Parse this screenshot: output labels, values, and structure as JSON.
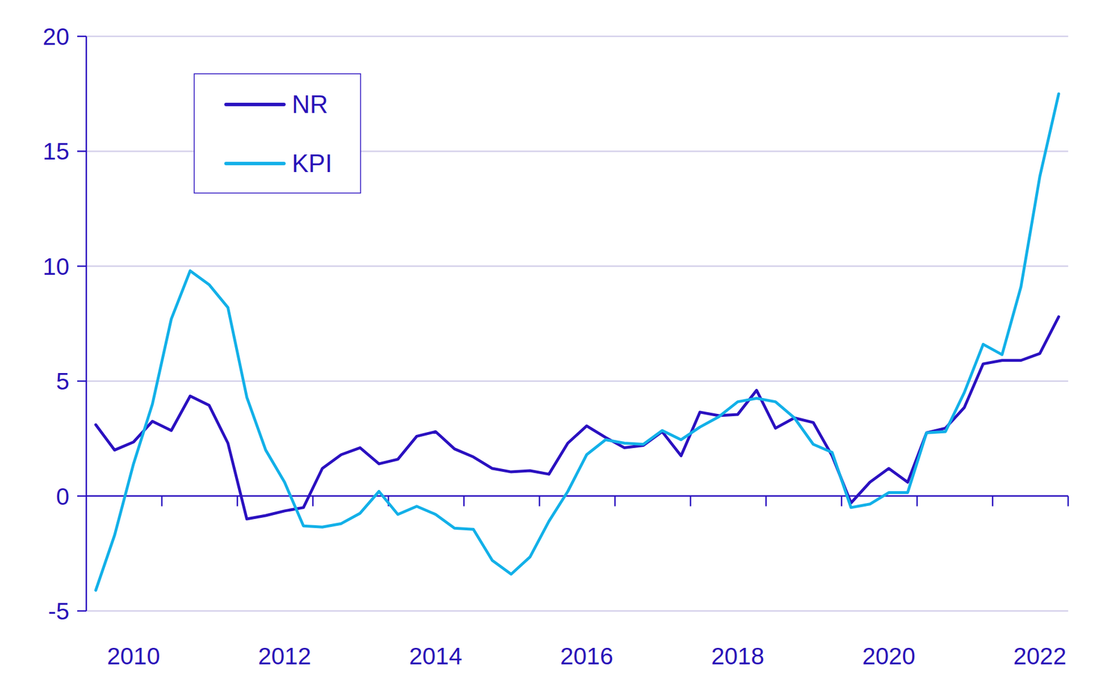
{
  "chart_data": {
    "type": "line",
    "categories": [
      null,
      null,
      "2010",
      null,
      null,
      null,
      null,
      null,
      null,
      null,
      "2012",
      null,
      null,
      null,
      null,
      null,
      null,
      null,
      "2014",
      null,
      null,
      null,
      null,
      null,
      null,
      null,
      "2016",
      null,
      null,
      null,
      null,
      null,
      null,
      null,
      "2018",
      null,
      null,
      null,
      null,
      null,
      null,
      null,
      "2020",
      null,
      null,
      null,
      null,
      null,
      null,
      null,
      "2022",
      null
    ],
    "series": [
      {
        "name": "NR",
        "color": "#2a10c0",
        "values": [
          3.1,
          2.0,
          2.35,
          3.25,
          2.85,
          4.35,
          3.95,
          2.3,
          -1.0,
          -0.85,
          -0.65,
          -0.5,
          1.2,
          1.8,
          2.1,
          1.4,
          1.6,
          2.6,
          2.8,
          2.05,
          1.7,
          1.2,
          1.05,
          1.1,
          0.95,
          2.3,
          3.05,
          2.55,
          2.1,
          2.2,
          2.8,
          1.75,
          3.65,
          3.5,
          3.55,
          4.6,
          2.95,
          3.4,
          3.2,
          1.75,
          -0.3,
          0.6,
          1.2,
          0.6,
          2.75,
          2.95,
          3.85,
          5.75,
          5.9,
          5.9,
          6.2,
          7.8
        ]
      },
      {
        "name": "KPI",
        "color": "#12b0e8",
        "values": [
          -4.1,
          -1.7,
          1.4,
          4.0,
          7.7,
          9.8,
          9.2,
          8.2,
          4.3,
          2.0,
          0.6,
          -1.3,
          -1.35,
          -1.2,
          -0.75,
          0.2,
          -0.8,
          -0.45,
          -0.8,
          -1.4,
          -1.45,
          -2.8,
          -3.4,
          -2.65,
          -1.1,
          0.2,
          1.8,
          2.45,
          2.3,
          2.25,
          2.85,
          2.45,
          3.0,
          3.45,
          4.1,
          4.25,
          4.1,
          3.4,
          2.25,
          1.9,
          -0.5,
          -0.35,
          0.15,
          0.15,
          2.75,
          2.8,
          4.5,
          6.6,
          6.15,
          9.1,
          13.9,
          17.5
        ]
      }
    ],
    "ylim": [
      -5,
      20
    ],
    "yticks": [
      -5,
      0,
      5,
      10,
      15,
      20
    ],
    "grid": true,
    "legend": "top-left"
  }
}
